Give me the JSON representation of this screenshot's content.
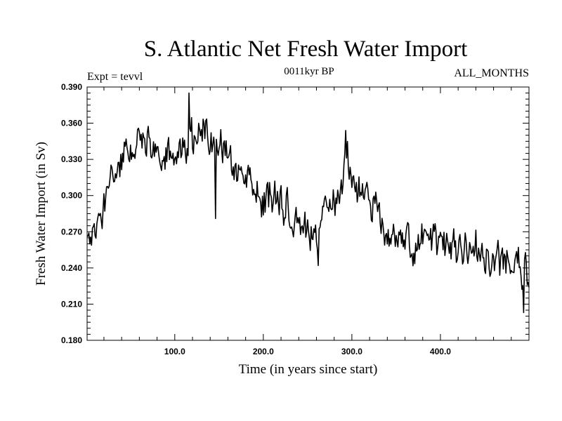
{
  "chart_data": {
    "type": "line",
    "title": "S. Atlantic Net Fresh Water Import",
    "subtitle": "0011kyr BP",
    "left_annotation": "Expt = tevvl",
    "right_annotation": "ALL_MONTHS",
    "xlabel": "Time (in years since start)",
    "ylabel": "Fresh Water Import (in Sv)",
    "xlim": [
      1,
      500
    ],
    "ylim": [
      0.18,
      0.39
    ],
    "xticks": [
      100,
      200,
      300,
      400
    ],
    "xtick_labels": [
      "100.0",
      "200.0",
      "300.0",
      "400.0"
    ],
    "yticks": [
      0.18,
      0.21,
      0.24,
      0.27,
      0.3,
      0.33,
      0.36,
      0.39
    ],
    "ytick_labels": [
      "0.180",
      "0.210",
      "0.240",
      "0.270",
      "0.300",
      "0.330",
      "0.360",
      "0.390"
    ],
    "grid": false,
    "series": [
      {
        "name": "Fresh Water Import",
        "color": "#000000",
        "sample_interval_years": 1,
        "trend_anchors": {
          "x": [
            1,
            10,
            20,
            30,
            40,
            50,
            60,
            80,
            100,
            120,
            140,
            160,
            180,
            200,
            220,
            240,
            260,
            280,
            295,
            310,
            330,
            340,
            360,
            380,
            400,
            420,
            440,
            460,
            480,
            500
          ],
          "y": [
            0.262,
            0.272,
            0.29,
            0.31,
            0.33,
            0.335,
            0.345,
            0.338,
            0.33,
            0.348,
            0.352,
            0.332,
            0.315,
            0.298,
            0.295,
            0.278,
            0.262,
            0.302,
            0.325,
            0.3,
            0.29,
            0.265,
            0.258,
            0.262,
            0.258,
            0.255,
            0.258,
            0.248,
            0.24,
            0.236
          ]
        },
        "noise_amplitude": 0.013,
        "features": [
          {
            "x": 116,
            "y": 0.385,
            "label": "max"
          },
          {
            "x": 146,
            "y": 0.281,
            "label": "dip"
          },
          {
            "x": 293,
            "y": 0.354,
            "label": "secondary peak"
          },
          {
            "x": 262,
            "y": 0.242,
            "label": "dip"
          },
          {
            "x": 494,
            "y": 0.203,
            "label": "min"
          }
        ]
      }
    ]
  }
}
